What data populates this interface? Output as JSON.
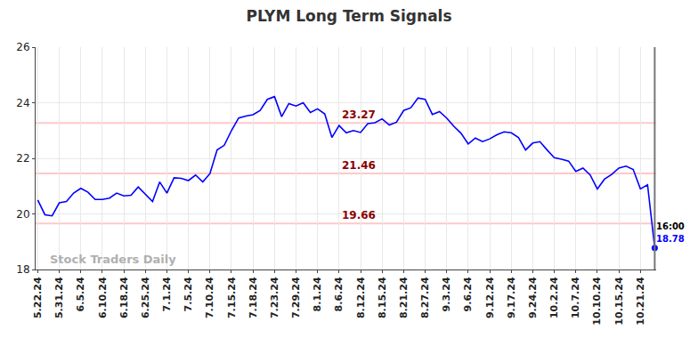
{
  "chart_data": {
    "type": "line",
    "title": "PLYM Long Term Signals",
    "watermark": "Stock Traders Daily",
    "last_time": "16:00",
    "color": "#0000ff",
    "grid": true,
    "marker": "last",
    "levels": [
      23.27,
      21.46,
      19.66
    ],
    "categories": [
      "5.22.24",
      null,
      null,
      "5.31.24",
      null,
      null,
      "6.5.24",
      null,
      null,
      "6.10.24",
      null,
      null,
      "6.18.24",
      null,
      null,
      "6.25.24",
      null,
      null,
      "7.1.24",
      null,
      null,
      "7.5.24",
      null,
      null,
      "7.10.24",
      null,
      null,
      "7.15.24",
      null,
      null,
      "7.18.24",
      null,
      null,
      "7.23.24",
      null,
      null,
      "7.29.24",
      null,
      null,
      "8.1.24",
      null,
      null,
      "8.6.24",
      null,
      null,
      "8.12.24",
      null,
      null,
      "8.15.24",
      null,
      null,
      "8.21.24",
      null,
      null,
      "8.27.24",
      null,
      null,
      "9.3.24",
      null,
      null,
      "9.6.24",
      null,
      null,
      "9.12.24",
      null,
      null,
      "9.17.24",
      null,
      null,
      "9.24.24",
      null,
      null,
      "10.2.24",
      null,
      null,
      "10.7.24",
      null,
      null,
      "10.10.24",
      null,
      null,
      "10.15.24",
      null,
      null,
      "10.21.24",
      null,
      null
    ],
    "values": [
      20.5,
      19.97,
      19.93,
      20.4,
      20.45,
      20.75,
      20.92,
      20.78,
      20.52,
      20.52,
      20.57,
      20.75,
      20.65,
      20.67,
      20.97,
      20.7,
      20.45,
      21.15,
      20.75,
      21.3,
      21.28,
      21.2,
      21.4,
      21.15,
      21.45,
      22.3,
      22.47,
      23.0,
      23.45,
      23.52,
      23.57,
      23.72,
      24.12,
      24.22,
      23.5,
      23.97,
      23.88,
      24.0,
      23.65,
      23.78,
      23.6,
      22.75,
      23.18,
      22.92,
      23.0,
      22.93,
      23.25,
      23.28,
      23.42,
      23.2,
      23.3,
      23.72,
      23.82,
      24.17,
      24.12,
      23.58,
      23.68,
      23.45,
      23.15,
      22.9,
      22.52,
      22.73,
      22.6,
      22.7,
      22.85,
      22.95,
      22.92,
      22.75,
      22.3,
      22.55,
      22.6,
      22.3,
      22.02,
      21.97,
      21.9,
      21.53,
      21.65,
      21.4,
      20.9,
      21.25,
      21.42,
      21.65,
      21.72,
      21.6,
      20.9,
      21.05,
      18.78
    ],
    "ylim": [
      18,
      26
    ],
    "yticks": [
      18,
      20,
      22,
      24,
      26
    ]
  }
}
